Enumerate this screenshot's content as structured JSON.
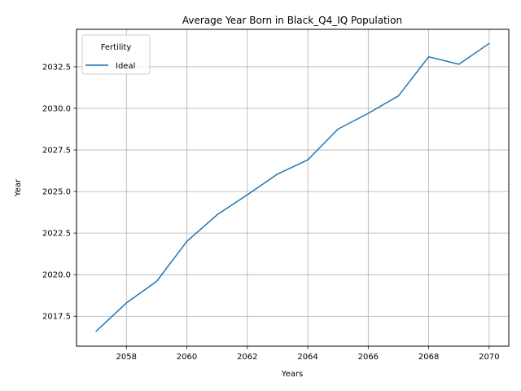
{
  "chart_data": {
    "type": "line",
    "title": "Average Year Born in Black_Q4_IQ Population",
    "xlabel": "Years",
    "ylabel": "Year",
    "x": [
      2057,
      2058,
      2059,
      2060,
      2061,
      2062,
      2063,
      2064,
      2065,
      2066,
      2067,
      2068,
      2069,
      2070
    ],
    "series": [
      {
        "name": "Ideal",
        "color": "#1f77b4",
        "values": [
          2016.6,
          2018.3,
          2019.6,
          2022.0,
          2023.6,
          2024.8,
          2026.05,
          2026.9,
          2028.75,
          2029.7,
          2030.75,
          2033.1,
          2032.65,
          2033.9
        ]
      }
    ],
    "xlim": [
      2056.35,
      2070.65
    ],
    "ylim": [
      2015.7,
      2034.75
    ],
    "xticks": [
      2058,
      2060,
      2062,
      2064,
      2066,
      2068,
      2070
    ],
    "yticks": [
      2017.5,
      2020.0,
      2022.5,
      2025.0,
      2027.5,
      2030.0,
      2032.5
    ],
    "ytick_labels": [
      "2017.5",
      "2020.0",
      "2022.5",
      "2025.0",
      "2027.5",
      "2030.0",
      "2032.5"
    ],
    "grid": true,
    "legend": {
      "title": "Fertility",
      "placement": "top-left"
    }
  }
}
